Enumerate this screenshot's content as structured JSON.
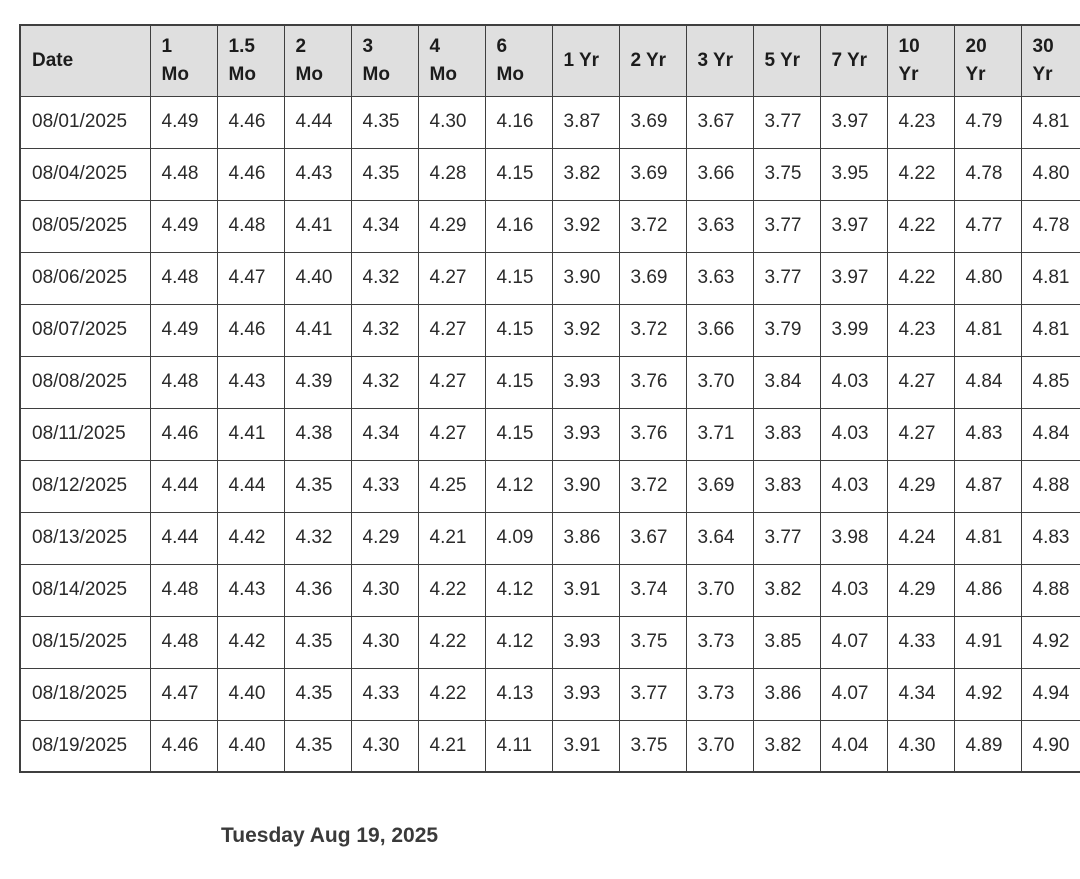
{
  "chart_data": {
    "type": "table",
    "columns": [
      "Date",
      "1 Mo",
      "1.5 Mo",
      "2 Mo",
      "3 Mo",
      "4 Mo",
      "6 Mo",
      "1 Yr",
      "2 Yr",
      "3 Yr",
      "5 Yr",
      "7 Yr",
      "10 Yr",
      "20 Yr",
      "30 Yr"
    ],
    "rows": [
      [
        "08/01/2025",
        "4.49",
        "4.46",
        "4.44",
        "4.35",
        "4.30",
        "4.16",
        "3.87",
        "3.69",
        "3.67",
        "3.77",
        "3.97",
        "4.23",
        "4.79",
        "4.81"
      ],
      [
        "08/04/2025",
        "4.48",
        "4.46",
        "4.43",
        "4.35",
        "4.28",
        "4.15",
        "3.82",
        "3.69",
        "3.66",
        "3.75",
        "3.95",
        "4.22",
        "4.78",
        "4.80"
      ],
      [
        "08/05/2025",
        "4.49",
        "4.48",
        "4.41",
        "4.34",
        "4.29",
        "4.16",
        "3.92",
        "3.72",
        "3.63",
        "3.77",
        "3.97",
        "4.22",
        "4.77",
        "4.78"
      ],
      [
        "08/06/2025",
        "4.48",
        "4.47",
        "4.40",
        "4.32",
        "4.27",
        "4.15",
        "3.90",
        "3.69",
        "3.63",
        "3.77",
        "3.97",
        "4.22",
        "4.80",
        "4.81"
      ],
      [
        "08/07/2025",
        "4.49",
        "4.46",
        "4.41",
        "4.32",
        "4.27",
        "4.15",
        "3.92",
        "3.72",
        "3.66",
        "3.79",
        "3.99",
        "4.23",
        "4.81",
        "4.81"
      ],
      [
        "08/08/2025",
        "4.48",
        "4.43",
        "4.39",
        "4.32",
        "4.27",
        "4.15",
        "3.93",
        "3.76",
        "3.70",
        "3.84",
        "4.03",
        "4.27",
        "4.84",
        "4.85"
      ],
      [
        "08/11/2025",
        "4.46",
        "4.41",
        "4.38",
        "4.34",
        "4.27",
        "4.15",
        "3.93",
        "3.76",
        "3.71",
        "3.83",
        "4.03",
        "4.27",
        "4.83",
        "4.84"
      ],
      [
        "08/12/2025",
        "4.44",
        "4.44",
        "4.35",
        "4.33",
        "4.25",
        "4.12",
        "3.90",
        "3.72",
        "3.69",
        "3.83",
        "4.03",
        "4.29",
        "4.87",
        "4.88"
      ],
      [
        "08/13/2025",
        "4.44",
        "4.42",
        "4.32",
        "4.29",
        "4.21",
        "4.09",
        "3.86",
        "3.67",
        "3.64",
        "3.77",
        "3.98",
        "4.24",
        "4.81",
        "4.83"
      ],
      [
        "08/14/2025",
        "4.48",
        "4.43",
        "4.36",
        "4.30",
        "4.22",
        "4.12",
        "3.91",
        "3.74",
        "3.70",
        "3.82",
        "4.03",
        "4.29",
        "4.86",
        "4.88"
      ],
      [
        "08/15/2025",
        "4.48",
        "4.42",
        "4.35",
        "4.30",
        "4.22",
        "4.12",
        "3.93",
        "3.75",
        "3.73",
        "3.85",
        "4.07",
        "4.33",
        "4.91",
        "4.92"
      ],
      [
        "08/18/2025",
        "4.47",
        "4.40",
        "4.35",
        "4.33",
        "4.22",
        "4.13",
        "3.93",
        "3.77",
        "3.73",
        "3.86",
        "4.07",
        "4.34",
        "4.92",
        "4.94"
      ],
      [
        "08/19/2025",
        "4.46",
        "4.40",
        "4.35",
        "4.30",
        "4.21",
        "4.11",
        "3.91",
        "3.75",
        "3.70",
        "3.82",
        "4.04",
        "4.30",
        "4.89",
        "4.90"
      ]
    ],
    "caption": "Tuesday Aug 19, 2025",
    "layout_hints": {
      "grid": "on",
      "header_row": "shaded",
      "clipped_right": true
    }
  },
  "colors": {
    "header_bg": "#dfdfdf",
    "border": "#3f3f3f",
    "cell_text": "#2a2a2a",
    "footer_text": "#3a3a3a"
  }
}
